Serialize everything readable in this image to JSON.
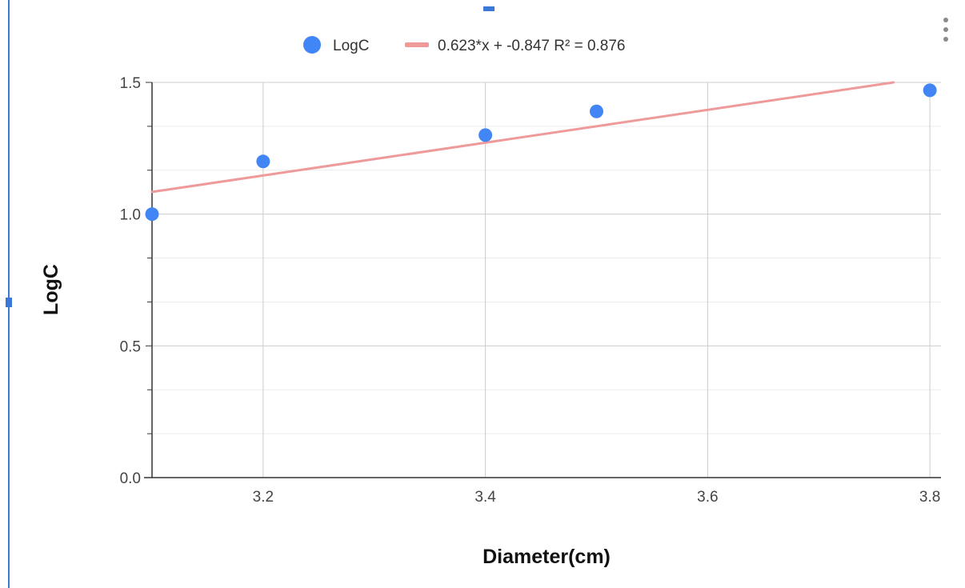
{
  "chart_data": {
    "type": "scatter",
    "title": "",
    "xlabel": "Diameter(cm)",
    "ylabel": "LogC",
    "xlim": [
      3.1,
      3.81
    ],
    "ylim": [
      0.0,
      1.5
    ],
    "x_ticks": [
      "3.2",
      "3.4",
      "3.6",
      "3.8"
    ],
    "y_ticks": [
      "0.0",
      "0.5",
      "1.0",
      "1.5"
    ],
    "grid": true,
    "legend_position": "top",
    "series": [
      {
        "name": "LogC",
        "color": "#4285f4",
        "points": [
          {
            "x": 3.1,
            "y": 1.0
          },
          {
            "x": 3.2,
            "y": 1.2
          },
          {
            "x": 3.4,
            "y": 1.3
          },
          {
            "x": 3.5,
            "y": 1.39
          },
          {
            "x": 3.8,
            "y": 1.47
          }
        ]
      }
    ],
    "trendline": {
      "label": "0.623*x + -0.847 R² = 0.876",
      "slope": 0.623,
      "intercept": -0.847,
      "color": "#ef9a9a"
    }
  },
  "ui": {
    "selection_color": "#3b78d8",
    "menu_icon": "more-vert-icon"
  }
}
